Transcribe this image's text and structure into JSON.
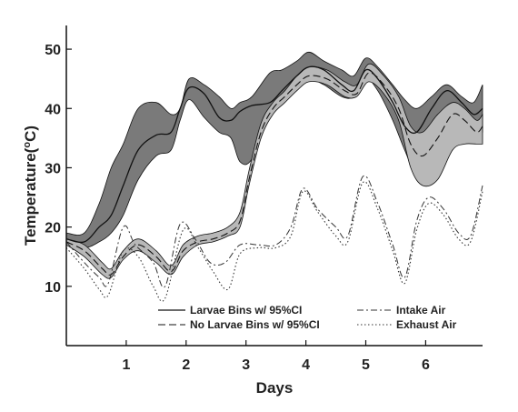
{
  "chart_data": {
    "type": "area",
    "xlabel": "Days",
    "ylabel": "Temperature(°C)",
    "ylabel_main": "Temperature(",
    "ylabel_sup": "o",
    "ylabel_end": "C)",
    "xlim": [
      0,
      6.95
    ],
    "ylim": [
      0,
      54
    ],
    "x_ticks": [
      1,
      2,
      3,
      4,
      5,
      6
    ],
    "y_ticks": [
      10,
      20,
      30,
      40,
      50
    ],
    "legend_position": "bottom-right",
    "colors": {
      "larvae_band": "#7a7a7a",
      "no_larvae_band": "#b8b8b8",
      "line": "#111111"
    },
    "series": [
      {
        "name": "Larvae Bins w/ 95%CI",
        "style": "solid",
        "x": [
          0,
          0.3,
          0.55,
          0.75,
          0.95,
          1.2,
          1.5,
          1.75,
          1.9,
          2.05,
          2.3,
          2.55,
          2.75,
          2.9,
          3.1,
          3.4,
          3.6,
          3.85,
          4.05,
          4.3,
          4.6,
          4.8,
          5.0,
          5.2,
          5.45,
          5.65,
          5.85,
          6.1,
          6.35,
          6.6,
          6.8,
          6.95
        ],
        "mean": [
          18,
          17.5,
          20,
          22,
          27,
          33,
          35.5,
          36,
          40,
          43.5,
          42.5,
          38.5,
          38,
          39.5,
          40.5,
          41,
          43,
          45.5,
          47,
          46.5,
          44,
          43,
          46.5,
          45,
          41,
          37,
          36,
          40,
          43,
          41,
          39,
          40
        ],
        "lower": [
          17.5,
          16.5,
          17.5,
          19,
          22,
          28,
          32,
          33,
          38,
          41.5,
          38.5,
          36,
          35,
          31,
          31.5,
          39,
          41,
          44,
          45,
          44,
          42,
          42,
          45,
          43,
          38,
          33,
          29,
          32,
          35,
          34,
          35,
          36
        ],
        "upper": [
          19,
          19,
          24,
          30,
          34,
          40,
          41,
          39,
          40,
          45,
          44,
          42,
          40,
          41,
          42,
          46,
          46.5,
          48,
          49.5,
          48,
          46.5,
          45.5,
          48.5,
          47,
          44,
          41.5,
          40,
          42,
          44,
          42,
          41,
          44
        ]
      },
      {
        "name": "No Larvae Bins w/ 95%CI",
        "style": "dashed",
        "x": [
          0,
          0.3,
          0.6,
          0.75,
          0.95,
          1.2,
          1.5,
          1.75,
          1.95,
          2.2,
          2.45,
          2.7,
          2.9,
          3.05,
          3.25,
          3.45,
          3.65,
          3.85,
          4.05,
          4.35,
          4.65,
          4.85,
          5.05,
          5.3,
          5.55,
          5.75,
          5.95,
          6.2,
          6.45,
          6.65,
          6.85,
          6.95
        ],
        "mean": [
          17.5,
          16,
          13,
          12,
          15,
          17,
          15,
          12.5,
          16,
          17.5,
          18,
          19,
          21,
          28,
          36,
          40,
          42,
          44,
          45.5,
          45,
          43,
          42.5,
          46,
          44,
          40,
          34,
          32,
          35,
          39,
          38,
          36,
          37
        ],
        "lower": [
          17,
          15,
          12,
          11.5,
          14.5,
          16,
          14,
          12,
          15,
          17,
          17.5,
          18.5,
          20,
          27,
          35,
          39,
          41,
          43,
          44.5,
          44,
          42,
          42,
          44.5,
          42.5,
          38,
          30,
          27,
          28,
          33,
          34,
          34,
          34
        ],
        "upper": [
          18,
          17,
          14,
          13,
          16,
          18,
          16,
          13.5,
          17,
          18.5,
          19,
          20,
          22.5,
          29.5,
          37.5,
          41,
          43,
          45.5,
          47,
          46.5,
          44.5,
          44,
          47.5,
          45.5,
          42,
          37,
          36,
          39,
          41,
          40,
          38,
          39
        ]
      },
      {
        "name": "Intake Air",
        "style": "dashdot",
        "x": [
          0,
          0.3,
          0.55,
          0.7,
          0.95,
          1.15,
          1.45,
          1.65,
          1.9,
          2.15,
          2.4,
          2.65,
          2.9,
          3.2,
          3.5,
          3.75,
          3.95,
          4.2,
          4.5,
          4.7,
          4.95,
          5.2,
          5.45,
          5.65,
          5.85,
          6.05,
          6.3,
          6.55,
          6.75,
          6.95
        ],
        "y": [
          17.5,
          14,
          11.5,
          10.5,
          20,
          17,
          14,
          10,
          20.5,
          18,
          14,
          14,
          17,
          17,
          17,
          20,
          26.5,
          23,
          20,
          18.5,
          28.5,
          24,
          17,
          11.5,
          21,
          25,
          23,
          19,
          18.5,
          27
        ]
      },
      {
        "name": "Exhaust Air",
        "style": "dotted",
        "x": [
          0,
          0.3,
          0.55,
          0.7,
          0.95,
          1.2,
          1.45,
          1.65,
          1.95,
          2.2,
          2.45,
          2.7,
          2.9,
          3.2,
          3.5,
          3.75,
          3.95,
          4.2,
          4.5,
          4.7,
          4.95,
          5.2,
          5.45,
          5.65,
          5.85,
          6.05,
          6.3,
          6.55,
          6.75,
          6.95
        ],
        "y": [
          16.5,
          13,
          9.5,
          8.5,
          16,
          15,
          10,
          8,
          19.5,
          16.5,
          12.5,
          9.5,
          15.5,
          16.5,
          16.5,
          18.5,
          26,
          22.5,
          18.5,
          17.5,
          27.5,
          23,
          16,
          10.5,
          19.5,
          24,
          22,
          18,
          17.5,
          26
        ]
      }
    ]
  }
}
